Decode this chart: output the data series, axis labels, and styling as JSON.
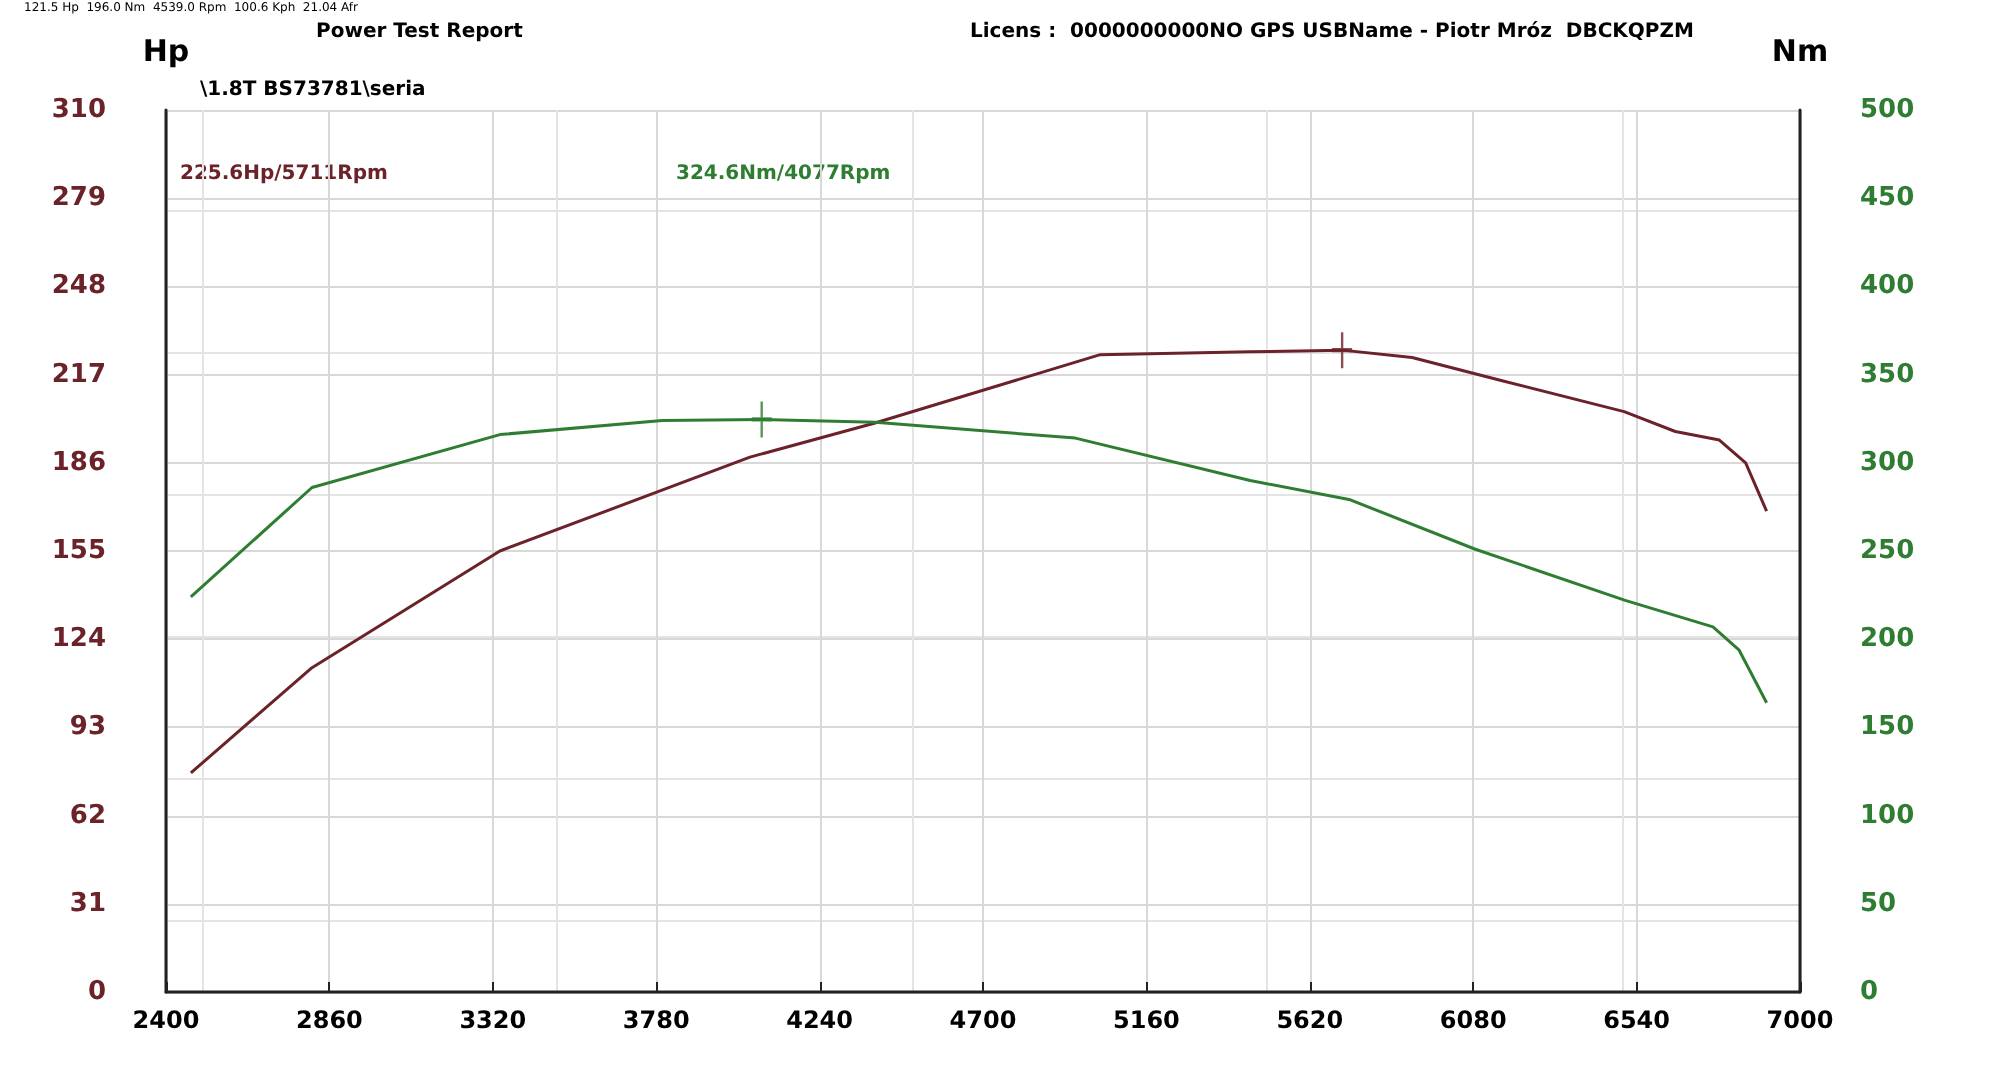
{
  "chart_data": {
    "type": "line",
    "title": "Power Test Report",
    "subtitle": "\\1.8T BS73781\\seria",
    "ylabel": "Hp",
    "y2label": "Nm",
    "annotations": [
      "121.5 Hp  196.0 Nm  4539.0 Rpm  100.6 Kph  21.04 Afr",
      "Licens :  0000000000NO GPS USBName - Piotr Mróz  DBCKQPZM",
      "225.6Hp/5711Rpm",
      "324.6Nm/4077Rpm"
    ],
    "series": [
      {
        "color": "#6b2229",
        "x": [
          2470,
          2811,
          3340,
          4044,
          4396,
          5030,
          5452,
          5711,
          5908,
          6156,
          6505,
          6649,
          6773,
          6847,
          6906
        ],
        "values": [
          77,
          114,
          155,
          188,
          200,
          224,
          225,
          225.6,
          223,
          215,
          204,
          197,
          194,
          186,
          169
        ]
      },
      {
        "color": "#2e7d32",
        "axis": "y2",
        "x": [
          2470,
          2811,
          3340,
          3797,
          4077,
          4396,
          4960,
          5452,
          5734,
          6086,
          6508,
          6755,
          6828,
          6906
        ],
        "values": [
          224,
          286,
          316,
          324,
          324.6,
          323,
          314,
          290,
          279,
          251,
          222,
          207,
          194,
          164
        ]
      },
      {
        "type": "scatter",
        "color": "#6b2229",
        "marker": "cross",
        "x": [
          5711
        ],
        "values": [
          225.6
        ]
      },
      {
        "type": "scatter",
        "color": "#2e7d32",
        "marker": "cross",
        "axis": "y2",
        "x": [
          4077
        ],
        "values": [
          324.6
        ]
      }
    ],
    "xlim": [
      2400,
      7000
    ],
    "xticks": [
      2400,
      2860,
      3320,
      3780,
      4240,
      4700,
      5160,
      5620,
      6080,
      6540,
      7000
    ],
    "ylim": [
      0,
      310
    ],
    "yticks": [
      0,
      31,
      62,
      93,
      124,
      155,
      186,
      217,
      248,
      279,
      310
    ],
    "y2lim": [
      0,
      500
    ],
    "y2ticks": [
      0,
      50,
      100,
      150,
      200,
      250,
      300,
      350,
      400,
      450,
      500
    ],
    "grid": true,
    "marker": "none",
    "line_style": "solid"
  }
}
